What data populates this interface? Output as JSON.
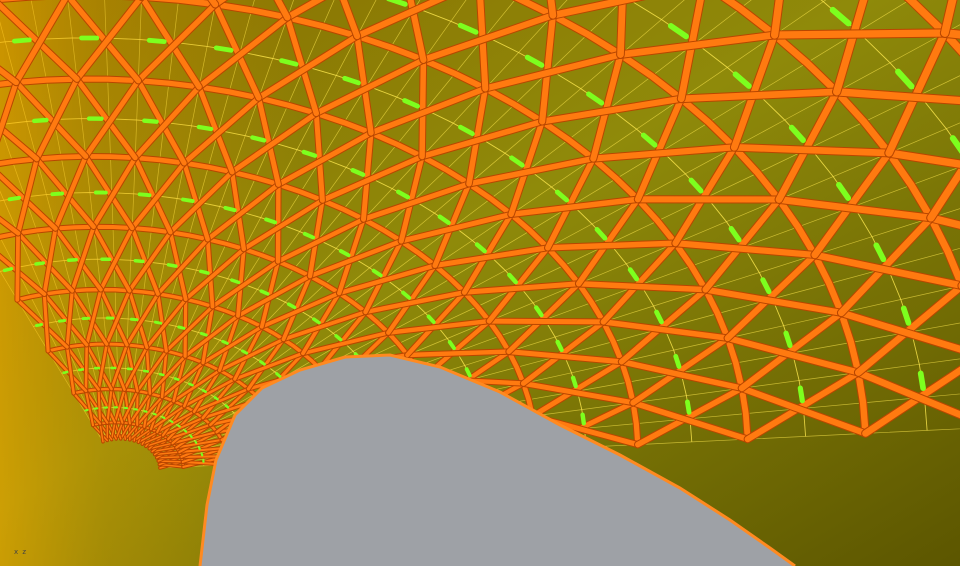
{
  "scene": {
    "subject": "gridshell-canopy-interior",
    "colors": {
      "background": "#9ea1a6",
      "shell_light": "#9e8f07",
      "shell_dark": "#5e5700",
      "member": "#ff7a10",
      "member_shadow": "#b84600",
      "panel_line": "#ffea50",
      "bracing": "#7dff1e"
    }
  },
  "view_axis": {
    "label": "x z"
  }
}
